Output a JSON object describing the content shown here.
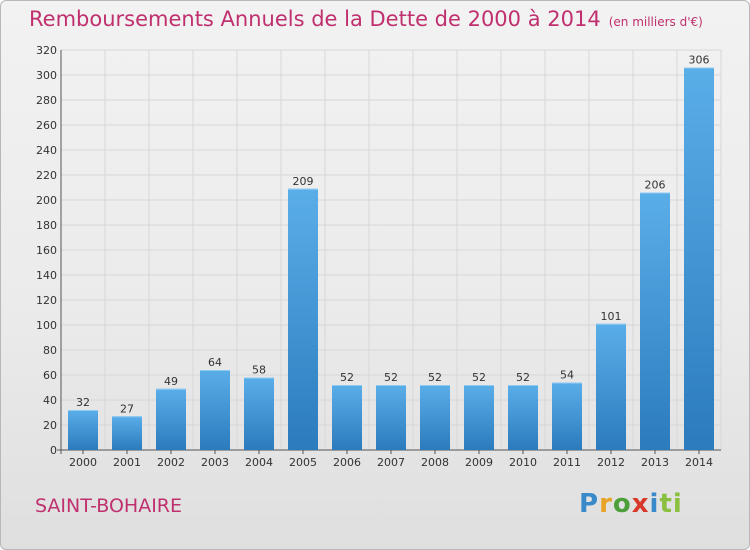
{
  "header": {
    "title": "Remboursements Annuels de la Dette de 2000 à 2014",
    "unit": "(en milliers d'€)"
  },
  "commune": "SAINT-BOHAIRE",
  "logo": {
    "text": "Proxiti",
    "letters": [
      "P",
      "r",
      "o",
      "x",
      "i",
      "ti"
    ]
  },
  "colors": {
    "title": "#c0306e",
    "bar_top": "#5aaee8",
    "bar_bottom": "#2b7bbd",
    "grid": "#d7d7d7",
    "axis_text": "#333333"
  },
  "chart_data": {
    "type": "bar",
    "title": "Remboursements Annuels de la Dette de 2000 à 2014",
    "subtitle": "(en milliers d'€)",
    "xlabel": "",
    "ylabel": "",
    "categories": [
      "2000",
      "2001",
      "2002",
      "2003",
      "2004",
      "2005",
      "2006",
      "2007",
      "2008",
      "2009",
      "2010",
      "2011",
      "2012",
      "2013",
      "2014"
    ],
    "values": [
      32,
      27,
      49,
      64,
      58,
      209,
      52,
      52,
      52,
      52,
      52,
      54,
      101,
      206,
      306
    ],
    "data_labels": [
      "32",
      "27",
      "49",
      "64",
      "58",
      "209",
      "52",
      "52",
      "52",
      "52",
      "52",
      "54",
      "101",
      "206",
      "306"
    ],
    "ylim": [
      0,
      320
    ],
    "yticks": [
      0,
      20,
      40,
      60,
      80,
      100,
      120,
      140,
      160,
      180,
      200,
      220,
      240,
      260,
      280,
      300,
      320
    ],
    "grid": true,
    "legend": "none"
  }
}
